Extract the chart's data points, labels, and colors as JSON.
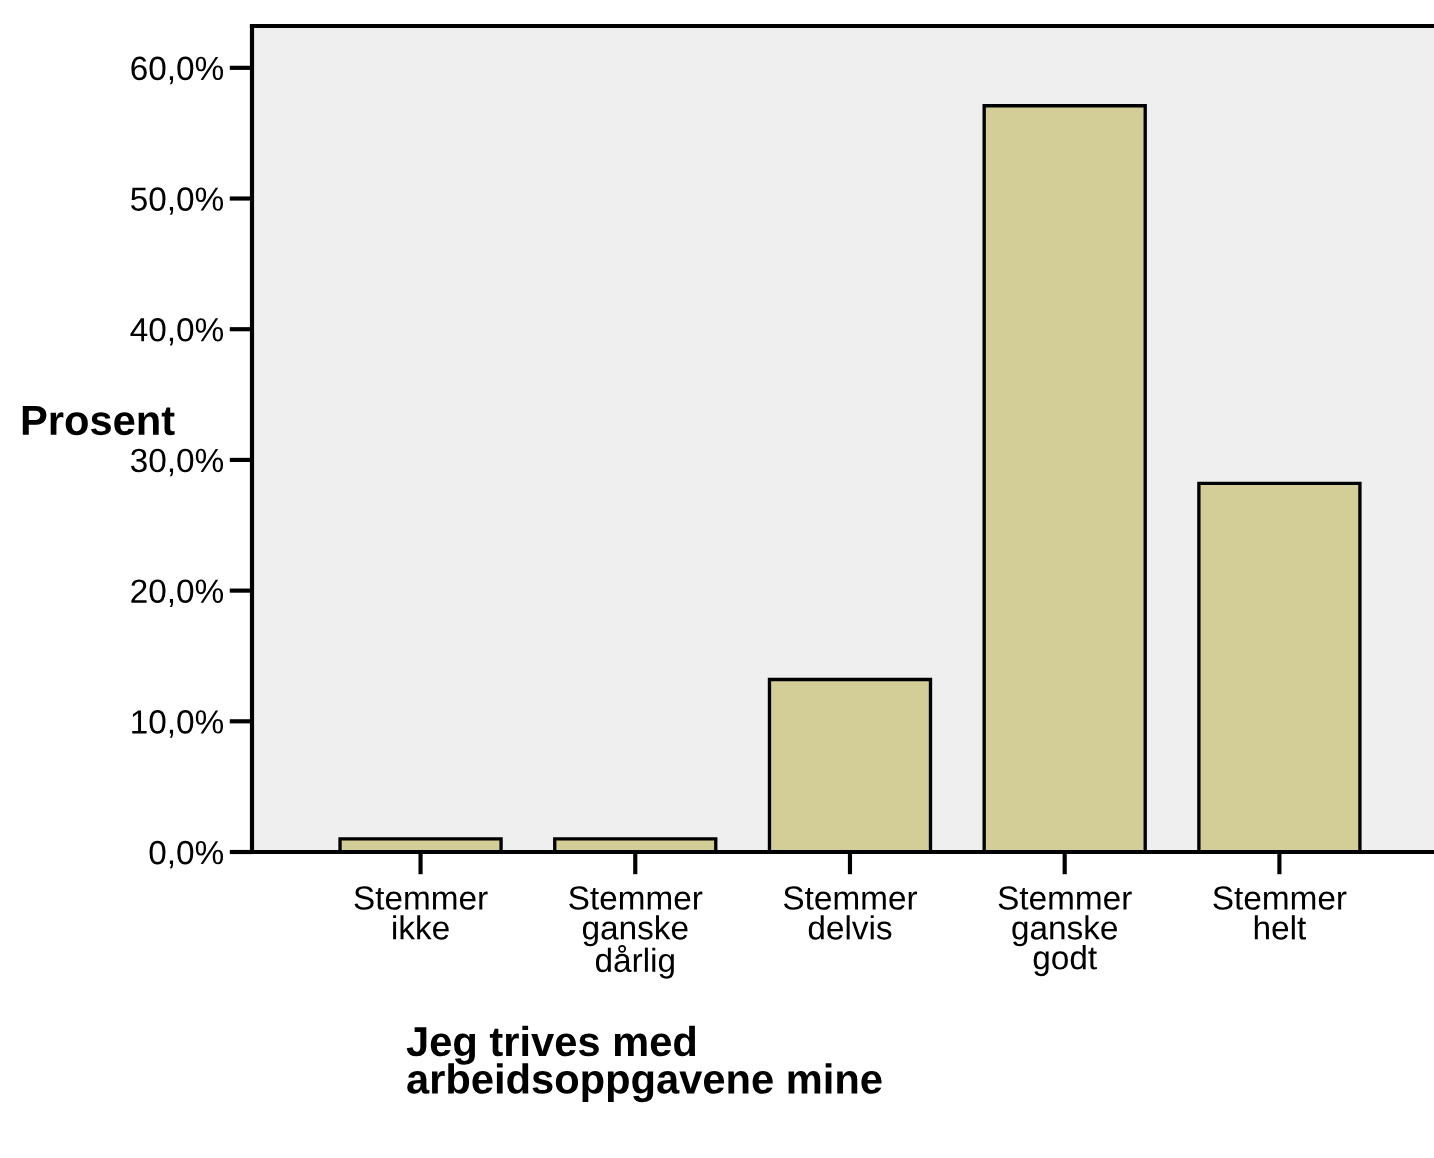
{
  "chart_data": {
    "type": "bar",
    "categories": [
      "Stemmer\nikke",
      "Stemmer\nganske\ndårlig",
      "Stemmer\ndelvis",
      "Stemmer\nganske\ngodt",
      "Stemmer\nhelt"
    ],
    "values": [
      1.0,
      1.0,
      13.2,
      57.1,
      28.2
    ],
    "color": "#d3cd97",
    "ylim": [
      0,
      63.2
    ],
    "yticks": [
      {
        "value": 0,
        "label": "0,0%"
      },
      {
        "value": 10,
        "label": "10,0%"
      },
      {
        "value": 20,
        "label": "20,0%"
      },
      {
        "value": 30,
        "label": "30,0%"
      },
      {
        "value": 40,
        "label": "40,0%"
      },
      {
        "value": 50,
        "label": "50,0%"
      },
      {
        "value": 60,
        "label": "60,0%"
      }
    ],
    "xlabel": "Jeg trives med\narbeidsoppgavene mine",
    "ylabel": "Prosent",
    "grid": false,
    "legend": false
  }
}
